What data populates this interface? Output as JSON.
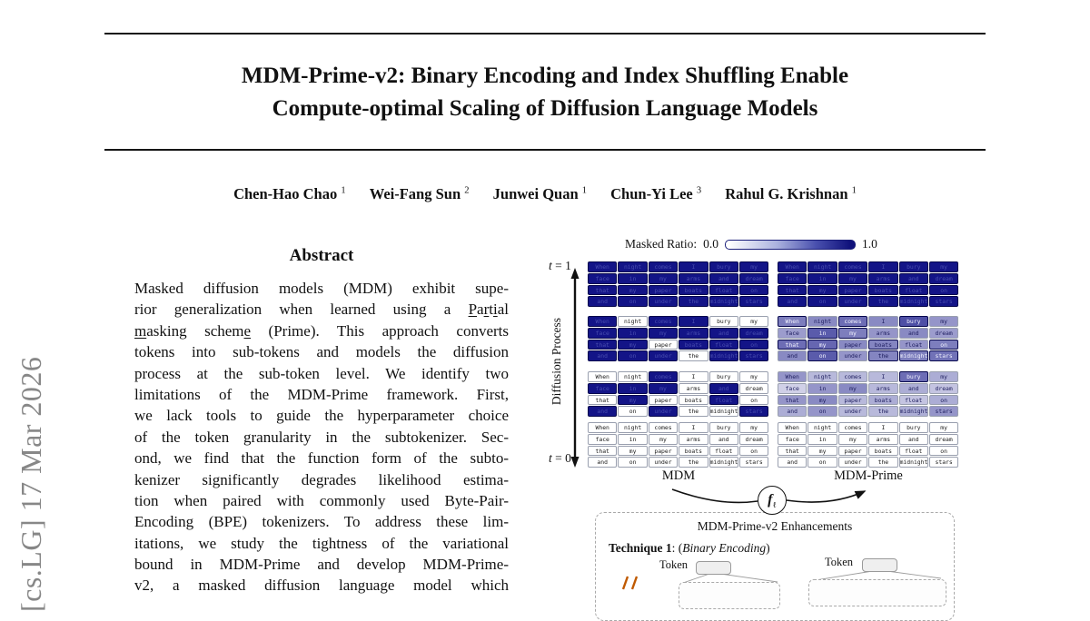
{
  "arxiv_sidebar": {
    "text": "[cs.LG] 17 Mar 2026"
  },
  "header": {
    "title_line1": "MDM-Prime-v2: Binary Encoding and Index Shuffling Enable",
    "title_line2": "Compute-optimal Scaling of Diffusion Language Models",
    "authors": [
      {
        "name": "Chen-Hao Chao",
        "affiliation": "1"
      },
      {
        "name": "Wei-Fang Sun",
        "affiliation": "2"
      },
      {
        "name": "Junwei Quan",
        "affiliation": "1"
      },
      {
        "name": "Chun-Yi Lee",
        "affiliation": "3"
      },
      {
        "name": "Rahul G. Krishnan",
        "affiliation": "1"
      }
    ]
  },
  "abstract": {
    "heading": "Abstract",
    "lines": [
      "Masked diffusion models (MDM) exhibit supe-",
      "rior generalization when learned using a [[u]]P[[/u]]a[[u]]r[[/u]]t[[u]]i[[/u]]al",
      "[[u]]m[[/u]]asking schem[[u]]e[[/u]] (Prime). This approach converts",
      "tokens into sub-tokens and models the diffusion",
      "process at the sub-token level.  We identify two",
      "limitations of the MDM-Prime framework. First,",
      "we lack tools to guide the hyperparameter choice",
      "of the token granularity in the subtokenizer. Sec-",
      "ond, we find that the function form of the subto-",
      "kenizer significantly degrades likelihood estima-",
      "tion when paired with commonly used Byte-Pair-",
      "Encoding (BPE) tokenizers. To address these lim-",
      "itations, we study the tightness of the variational",
      "bound in MDM-Prime and develop MDM-Prime-",
      "v2, a masked diffusion language model which"
    ]
  },
  "figure": {
    "legend": {
      "label": "Masked Ratio:",
      "min": "0.0",
      "max": "1.0"
    },
    "axis": {
      "t_top": "t = 1",
      "t_bottom": "t = 0",
      "ylabel": "Diffusion Process"
    },
    "words": [
      [
        "When",
        "night",
        "comes",
        "I",
        "bury",
        "my"
      ],
      [
        "face",
        "in",
        "my",
        "arms",
        "and",
        "dream"
      ],
      [
        "that",
        "my",
        "paper",
        "boats",
        "float",
        "on"
      ],
      [
        "and",
        "on",
        "under",
        "the",
        "midnight",
        "stars"
      ]
    ],
    "grids": {
      "mdm": {
        "label": "MDM",
        "blocks": [
          [
            [
              1,
              1,
              1,
              1,
              1,
              1
            ],
            [
              1,
              1,
              1,
              1,
              1,
              1
            ],
            [
              1,
              1,
              1,
              1,
              1,
              1
            ],
            [
              1,
              1,
              1,
              1,
              1,
              1
            ]
          ],
          [
            [
              1,
              0,
              1,
              1,
              0,
              0
            ],
            [
              1,
              1,
              1,
              1,
              1,
              1
            ],
            [
              1,
              1,
              0,
              1,
              1,
              1
            ],
            [
              1,
              1,
              1,
              0,
              1,
              1
            ]
          ],
          [
            [
              0,
              0,
              1,
              0,
              0,
              0
            ],
            [
              1,
              1,
              1,
              0,
              1,
              0
            ],
            [
              0,
              1,
              0,
              0,
              1,
              0
            ],
            [
              1,
              0,
              1,
              0,
              0,
              1
            ]
          ],
          [
            [
              0,
              0,
              0,
              0,
              0,
              0
            ],
            [
              0,
              0,
              0,
              0,
              0,
              0
            ],
            [
              0,
              0,
              0,
              0,
              0,
              0
            ],
            [
              0,
              0,
              0,
              0,
              0,
              0
            ]
          ]
        ]
      },
      "prime": {
        "label": "MDM-Prime",
        "blocks": [
          [
            [
              1,
              1,
              1,
              1,
              1,
              1
            ],
            [
              1,
              1,
              1,
              1,
              1,
              1
            ],
            [
              1,
              1,
              1,
              1,
              1,
              1
            ],
            [
              1,
              1,
              1,
              1,
              1,
              1
            ]
          ],
          [
            [
              0.55,
              0.5,
              0.62,
              0.5,
              0.75,
              0.45
            ],
            [
              0.42,
              0.7,
              0.55,
              0.45,
              0.5,
              0.42
            ],
            [
              0.62,
              0.65,
              0.5,
              0.52,
              0.45,
              0.55
            ],
            [
              0.5,
              0.7,
              0.45,
              0.52,
              0.55,
              0.6
            ]
          ],
          [
            [
              0.45,
              0.3,
              0.3,
              0.3,
              0.62,
              0.35
            ],
            [
              0.2,
              0.45,
              0.5,
              0.3,
              0.35,
              0.25
            ],
            [
              0.45,
              0.5,
              0.3,
              0.35,
              0.25,
              0.35
            ],
            [
              0.35,
              0.45,
              0.3,
              0.3,
              0.35,
              0.45
            ]
          ],
          [
            [
              0,
              0,
              0,
              0,
              0,
              0
            ],
            [
              0,
              0,
              0,
              0,
              0,
              0
            ],
            [
              0,
              0,
              0,
              0,
              0,
              0
            ],
            [
              0,
              0,
              0,
              0,
              0,
              0
            ]
          ]
        ]
      }
    },
    "mapper": {
      "symbol": "f",
      "subscript": "ℓ"
    },
    "enhancements": {
      "title": "MDM-Prime-v2  Enhancements",
      "technique1_bold": "Technique 1",
      "technique1_sep": ": (",
      "technique1_italic": "Binary Encoding",
      "technique1_close": ")",
      "token_label_left": "Token",
      "token_label_right": "Token"
    },
    "colors": {
      "mask_navy": "#131487",
      "gradient_end": "#10127c",
      "accent_orange": "#c05a00",
      "accent_green": "#1d5c1d",
      "sidebar_gray": "#878787"
    }
  }
}
